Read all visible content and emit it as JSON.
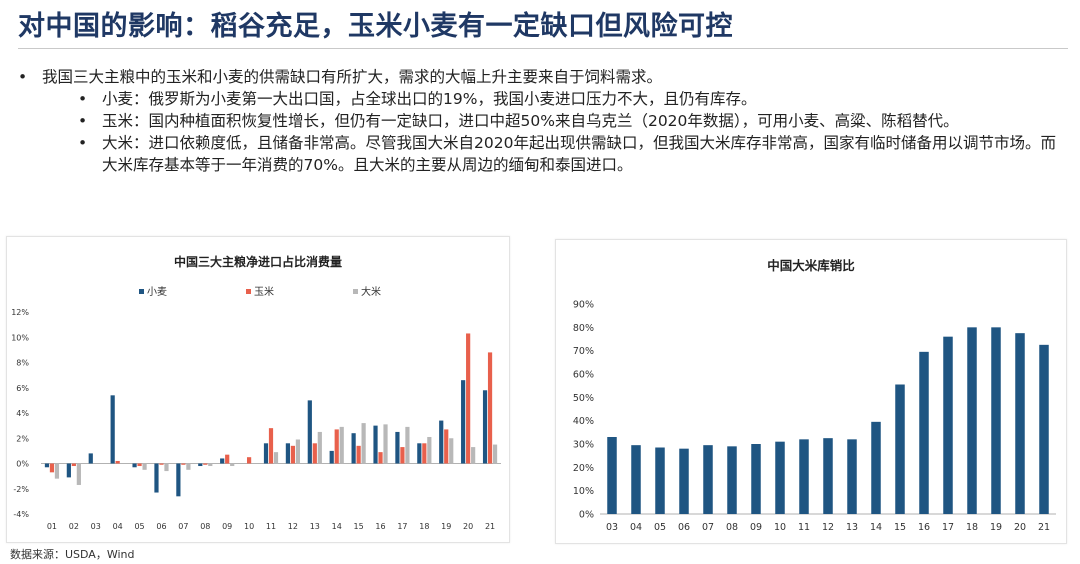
{
  "slide": {
    "title": "对中国的影响：稻谷充足，玉米小麦有一定缺口但风险可控",
    "bullets": {
      "main": "我国三大主粮中的玉米和小麦的供需缺口有所扩大，需求的大幅上升主要来自于饲料需求。",
      "wheat": "小麦：俄罗斯为小麦第一大出口国，占全球出口的19%，我国小麦进口压力不大，且仍有库存。",
      "corn": "玉米：国内种植面积恢复性增长，但仍有一定缺口，进口中超50%来自乌克兰（2020年数据），可用小麦、高粱、陈稻替代。",
      "rice": "大米：进口依赖度低，且储备非常高。尽管我国大米自2020年起出现供需缺口，但我国大米库存非常高，国家有临时储备用以调节市场。而大米库存基本等于一年消费的70%。且大米的主要从周边的缅甸和泰国进口。"
    },
    "source": "数据来源：USDA，Wind"
  },
  "chart_data": [
    {
      "type": "bar",
      "title": "中国三大主粮净进口占比消费量",
      "xlabel": "",
      "ylabel": "",
      "categories": [
        "01",
        "02",
        "03",
        "04",
        "05",
        "06",
        "07",
        "08",
        "09",
        "10",
        "11",
        "12",
        "13",
        "14",
        "15",
        "16",
        "17",
        "18",
        "19",
        "20",
        "21"
      ],
      "ylim": [
        -0.04,
        0.12
      ],
      "yticks": [
        "-4%",
        "-2%",
        "0%",
        "2%",
        "4%",
        "6%",
        "8%",
        "10%",
        "12%"
      ],
      "grid": false,
      "legend": "top",
      "colors": [
        "#1f5582",
        "#e8604c",
        "#b8b8b8"
      ],
      "series": [
        {
          "name": "小麦",
          "values": [
            -0.003,
            -0.011,
            0.008,
            0.054,
            -0.003,
            -0.023,
            -0.026,
            -0.002,
            0.004,
            0.0,
            0.016,
            0.016,
            0.05,
            0.01,
            0.024,
            0.03,
            0.025,
            0.016,
            0.034,
            0.066,
            0.058
          ]
        },
        {
          "name": "玉米",
          "values": [
            -0.007,
            -0.002,
            0.0,
            0.002,
            -0.002,
            -0.001,
            -0.001,
            -0.001,
            0.007,
            0.005,
            0.028,
            0.014,
            0.016,
            0.027,
            0.014,
            0.009,
            0.013,
            0.016,
            0.027,
            0.103,
            0.088
          ]
        },
        {
          "name": "大米",
          "values": [
            -0.012,
            -0.017,
            0.0,
            0.0,
            -0.005,
            -0.006,
            -0.005,
            -0.002,
            -0.002,
            0.0,
            0.009,
            0.019,
            0.025,
            0.029,
            0.032,
            0.031,
            0.029,
            0.021,
            0.02,
            0.013,
            0.015
          ]
        }
      ]
    },
    {
      "type": "bar",
      "title": "中国大米库销比",
      "xlabel": "",
      "ylabel": "",
      "categories": [
        "03",
        "04",
        "05",
        "06",
        "07",
        "08",
        "09",
        "10",
        "11",
        "12",
        "13",
        "14",
        "15",
        "16",
        "17",
        "18",
        "19",
        "20",
        "21"
      ],
      "ylim": [
        0,
        0.9
      ],
      "yticks": [
        "0%",
        "10%",
        "20%",
        "30%",
        "40%",
        "50%",
        "60%",
        "70%",
        "80%",
        "90%"
      ],
      "grid": false,
      "legend": "none",
      "colors": [
        "#1f5582"
      ],
      "series": [
        {
          "values": [
            0.33,
            0.295,
            0.285,
            0.28,
            0.295,
            0.29,
            0.3,
            0.31,
            0.32,
            0.325,
            0.32,
            0.395,
            0.555,
            0.695,
            0.76,
            0.8,
            0.8,
            0.775,
            0.725
          ]
        }
      ]
    }
  ]
}
